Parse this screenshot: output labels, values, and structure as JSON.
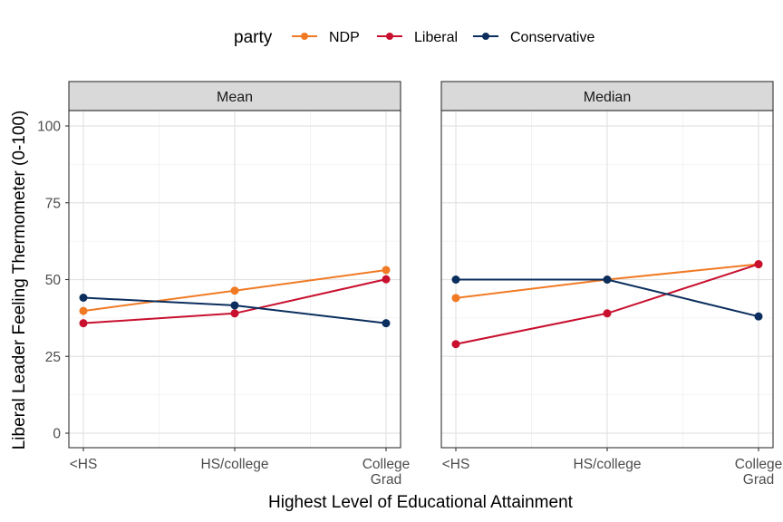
{
  "chart_data": {
    "type": "line",
    "legend": {
      "title": "party",
      "placement": "top",
      "entries": [
        "NDP",
        "Liberal",
        "Conservative"
      ]
    },
    "xlabel": "Highest Level of Educational Attainment",
    "ylabel": "Liberal Leader Feeling Thermometer (0-100)",
    "ylim": [
      0,
      100
    ],
    "y_ticks": [
      0,
      25,
      50,
      75,
      100
    ],
    "categories": [
      "<HS",
      "HS/college",
      "College Grad"
    ],
    "category_lines": [
      [
        "<HS"
      ],
      [
        "HS/college"
      ],
      [
        "College",
        "Grad"
      ]
    ],
    "grid": true,
    "colors": {
      "NDP": "#F07A24",
      "Liberal": "#C8102E",
      "Conservative": "#0B2E5E"
    },
    "panels": [
      {
        "title": "Mean",
        "series": [
          {
            "name": "NDP",
            "values": [
              39.8,
              46.4,
              53.1
            ]
          },
          {
            "name": "Liberal",
            "values": [
              35.8,
              39.0,
              50.1
            ]
          },
          {
            "name": "Conservative",
            "values": [
              44.1,
              41.6,
              35.8
            ]
          }
        ]
      },
      {
        "title": "Median",
        "series": [
          {
            "name": "NDP",
            "values": [
              44,
              50,
              55
            ]
          },
          {
            "name": "Liberal",
            "values": [
              29,
              39,
              55
            ]
          },
          {
            "name": "Conservative",
            "values": [
              50,
              50,
              38
            ]
          }
        ]
      }
    ]
  }
}
